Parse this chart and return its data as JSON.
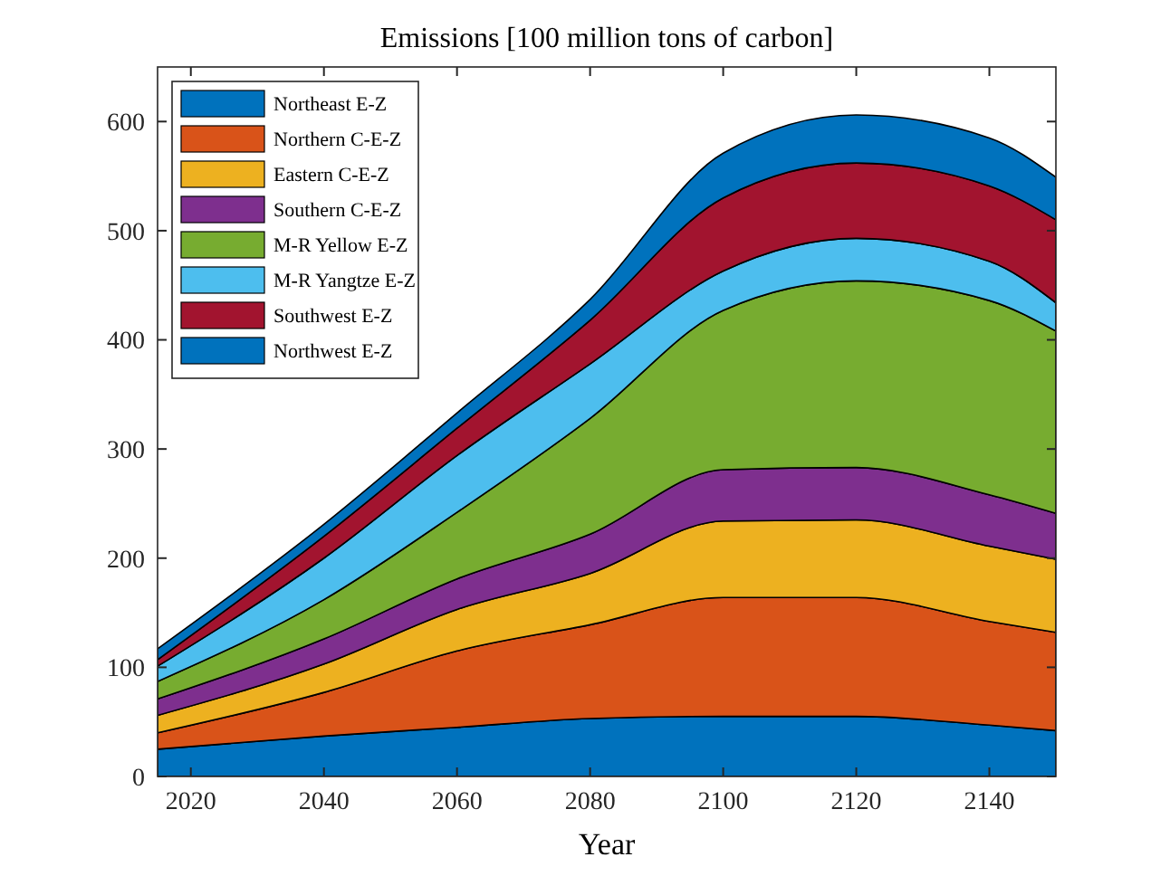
{
  "chart_data": {
    "type": "area",
    "stacked": true,
    "title": "Emissions [100 million tons of carbon]",
    "xlabel": "Year",
    "x": [
      2015,
      2040,
      2060,
      2080,
      2100,
      2120,
      2140,
      2150
    ],
    "series": [
      {
        "name": "Northeast E-Z",
        "color": "#0072bd",
        "values": [
          25,
          37,
          45,
          53,
          55,
          55,
          47,
          42
        ]
      },
      {
        "name": "Northern C-E-Z",
        "color": "#d95319",
        "values": [
          15,
          40,
          70,
          86,
          109,
          109,
          95,
          90
        ]
      },
      {
        "name": "Eastern C-E-Z",
        "color": "#edb120",
        "values": [
          16,
          26,
          38,
          47,
          70,
          71,
          69,
          67
        ]
      },
      {
        "name": "Southern C-E-Z",
        "color": "#7e2f8e",
        "values": [
          15,
          23,
          28,
          36,
          47,
          48,
          47,
          42
        ]
      },
      {
        "name": "M-R Yellow E-Z",
        "color": "#77ac30",
        "values": [
          16,
          36,
          61,
          106,
          146,
          171,
          178,
          167
        ]
      },
      {
        "name": "M-R Yangtze E-Z",
        "color": "#4dbeee",
        "values": [
          14,
          38,
          52,
          50,
          36,
          39,
          36,
          26
        ]
      },
      {
        "name": "Southwest E-Z",
        "color": "#a2142f",
        "values": [
          6,
          20,
          25,
          40,
          67,
          69,
          69,
          76
        ]
      },
      {
        "name": "Northwest E-Z",
        "color": "#0072bd",
        "values": [
          10,
          11,
          14,
          19,
          41,
          44,
          44,
          39
        ]
      }
    ],
    "xlim": [
      2015,
      2150
    ],
    "ylim": [
      0,
      650
    ],
    "xticks": [
      2020,
      2040,
      2060,
      2080,
      2100,
      2120,
      2140
    ],
    "yticks": [
      0,
      100,
      200,
      300,
      400,
      500,
      600
    ],
    "grid": false,
    "legend": "top left"
  }
}
